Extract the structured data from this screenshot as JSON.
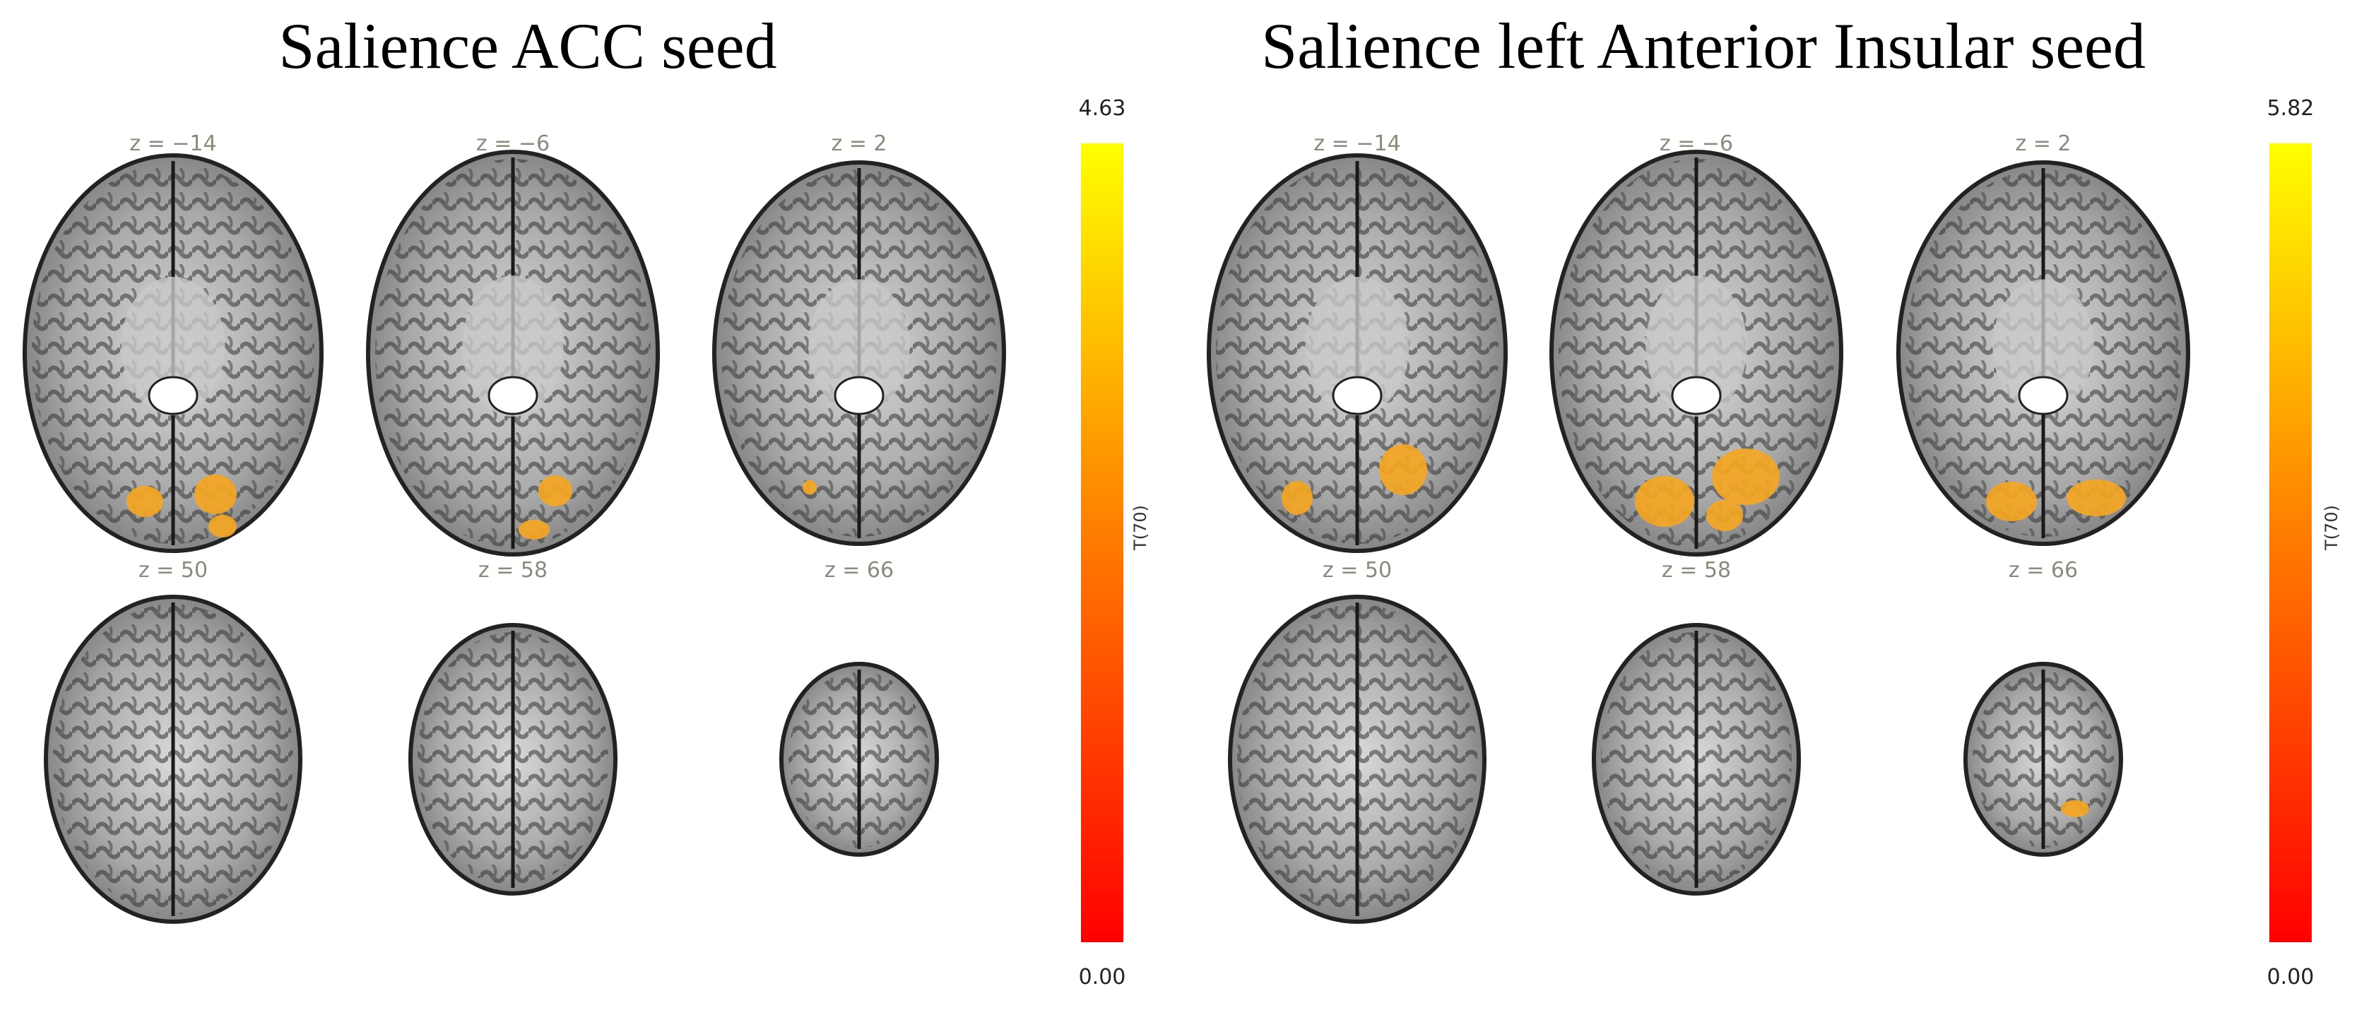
{
  "panels": [
    {
      "title": "Salience ACC seed",
      "slices": [
        "z = −14",
        "z = −6",
        "z = 2",
        "z = 50",
        "z = 58",
        "z = 66"
      ],
      "colorbar": {
        "max": "4.63",
        "min": "0.00",
        "label": "T(70)"
      }
    },
    {
      "title": "Salience left Anterior Insular seed",
      "slices": [
        "z = −14",
        "z = −6",
        "z = 2",
        "z = 50",
        "z = 58",
        "z = 66"
      ],
      "colorbar": {
        "max": "5.82",
        "min": "0.00",
        "label": "T(70)"
      }
    }
  ]
}
